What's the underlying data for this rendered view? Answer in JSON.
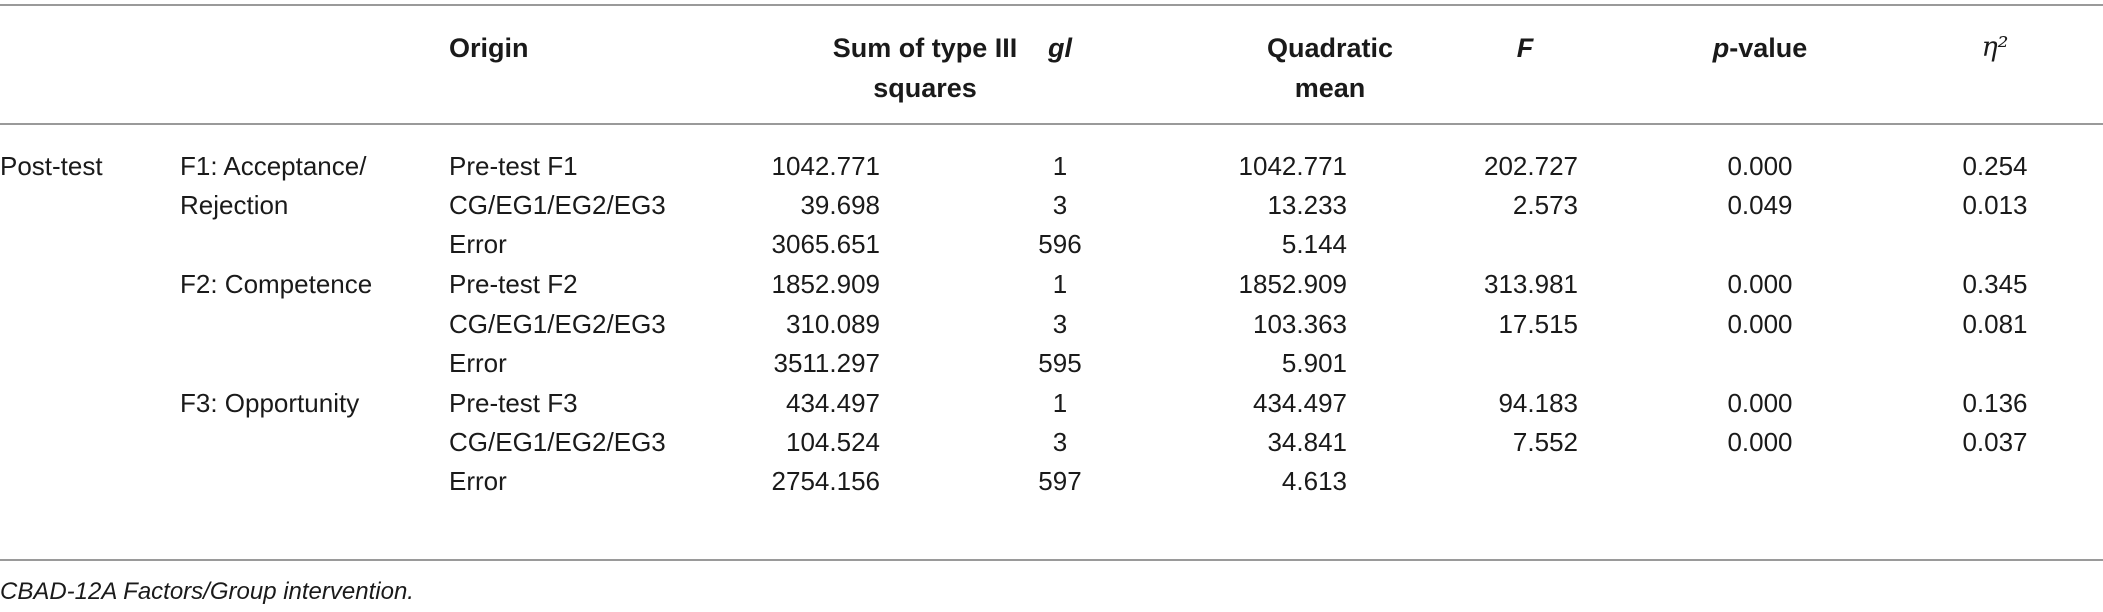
{
  "table": {
    "headers": {
      "origin": "Origin",
      "sum_squares": [
        "Sum of type III",
        "squares"
      ],
      "gl": "gl",
      "quadratic_mean": [
        "Quadratic",
        "mean"
      ],
      "f": "F",
      "p_value_prefix": "p",
      "p_value_suffix": "-value",
      "eta": "η²"
    },
    "stage": "Post-test",
    "factors": [
      {
        "label": [
          "F1: Acceptance/",
          "Rejection"
        ]
      },
      {
        "label": [
          "F2: Competence"
        ]
      },
      {
        "label": [
          "F3: Opportunity"
        ]
      }
    ],
    "rows": [
      {
        "origin": "Pre-test F1",
        "ss": "1042.771",
        "gl": "1",
        "qm": "1042.771",
        "f": "202.727",
        "p": "0.000",
        "eta": "0.254"
      },
      {
        "origin": "CG/EG1/EG2/EG3",
        "ss": "39.698",
        "gl": "3",
        "qm": "13.233",
        "f": "2.573",
        "p": "0.049",
        "eta": "0.013"
      },
      {
        "origin": "Error",
        "ss": "3065.651",
        "gl": "596",
        "qm": "5.144",
        "f": "",
        "p": "",
        "eta": ""
      },
      {
        "origin": "Pre-test F2",
        "ss": "1852.909",
        "gl": "1",
        "qm": "1852.909",
        "f": "313.981",
        "p": "0.000",
        "eta": "0.345"
      },
      {
        "origin": "CG/EG1/EG2/EG3",
        "ss": "310.089",
        "gl": "3",
        "qm": "103.363",
        "f": "17.515",
        "p": "0.000",
        "eta": "0.081"
      },
      {
        "origin": "Error",
        "ss": "3511.297",
        "gl": "595",
        "qm": "5.901",
        "f": "",
        "p": "",
        "eta": ""
      },
      {
        "origin": "Pre-test F3",
        "ss": "434.497",
        "gl": "1",
        "qm": "434.497",
        "f": "94.183",
        "p": "0.000",
        "eta": "0.136"
      },
      {
        "origin": "CG/EG1/EG2/EG3",
        "ss": "104.524",
        "gl": "3",
        "qm": "34.841",
        "f": "7.552",
        "p": "0.000",
        "eta": "0.037"
      },
      {
        "origin": "Error",
        "ss": "2754.156",
        "gl": "597",
        "qm": "4.613",
        "f": "",
        "p": "",
        "eta": ""
      }
    ]
  },
  "footnote": "CBAD-12A Factors/Group intervention."
}
